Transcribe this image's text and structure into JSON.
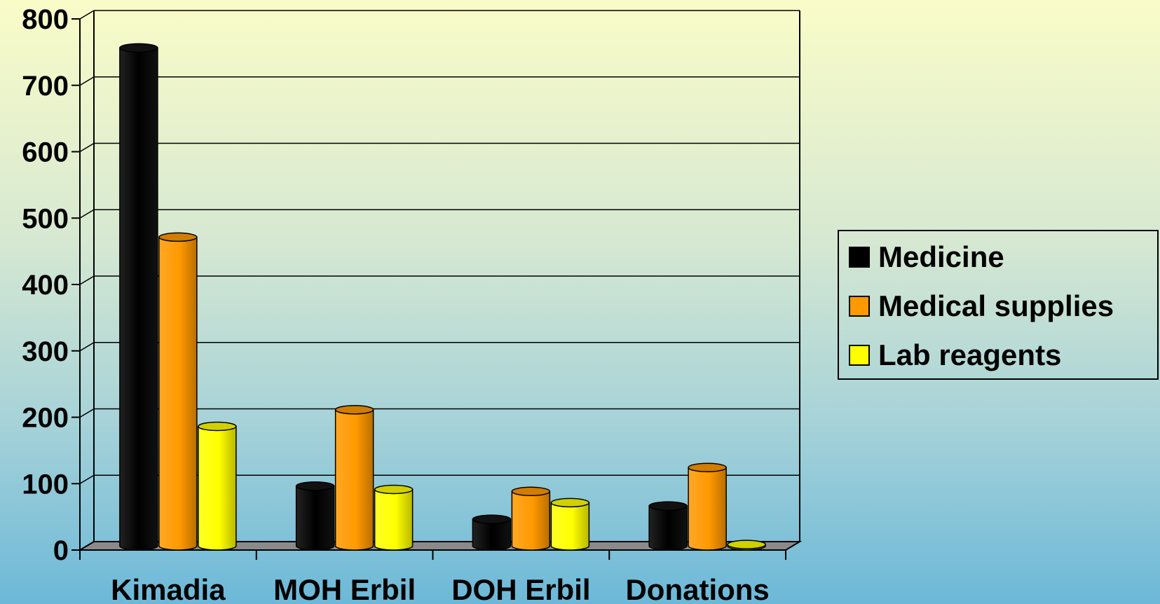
{
  "chart_data": {
    "type": "bar",
    "categories": [
      "Kimadia",
      "MOH Erbil",
      "DOH Erbil",
      "Donations"
    ],
    "series": [
      {
        "name": "Medicine",
        "values": [
          750,
          90,
          40,
          60
        ],
        "color": "#000000"
      },
      {
        "name": "Medical supplies",
        "values": [
          465,
          205,
          82,
          118
        ],
        "color": "#ff9900"
      },
      {
        "name": "Lab reagents",
        "values": [
          180,
          85,
          65,
          2
        ],
        "color": "#ffff00"
      }
    ],
    "ylim": [
      0,
      800
    ],
    "yticks": [
      "0",
      "100",
      "200",
      "300",
      "400",
      "500",
      "600",
      "700",
      "800"
    ],
    "grid": true,
    "legend_position": "right"
  }
}
